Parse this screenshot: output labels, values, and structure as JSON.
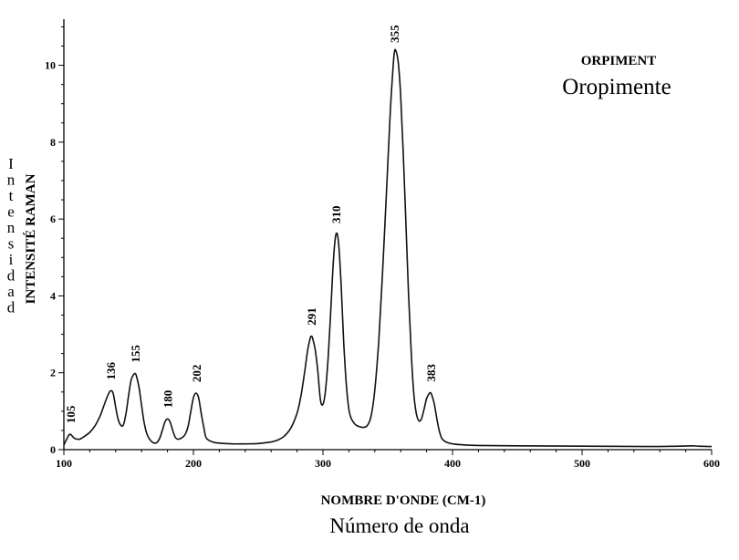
{
  "chart_data": {
    "type": "line",
    "title_en": "ORPIMENT",
    "title_es": "Oropimente",
    "xlabel_en": "NOMBRE D'ONDE (CM-1)",
    "xlabel_es": "Número de onda",
    "ylabel_en": "INTENSITÉ RAMAN",
    "ylabel_es": "Intensidad",
    "xlim": [
      100,
      600
    ],
    "ylim": [
      0,
      11.2
    ],
    "x_ticks": [
      100,
      200,
      300,
      400,
      500,
      600
    ],
    "y_ticks": [
      0,
      2,
      4,
      6,
      8,
      10
    ],
    "grid": false,
    "peak_labels": [
      "105",
      "136",
      "155",
      "180",
      "202",
      "291",
      "310",
      "355",
      "383"
    ],
    "series": [
      {
        "x": [
          100,
          103,
          105,
          108,
          112,
          116,
          120,
          124,
          128,
          131,
          134,
          136,
          138,
          140,
          142,
          144,
          146,
          148,
          150,
          152,
          154,
          155,
          156,
          158,
          160,
          162,
          164,
          166,
          168,
          170,
          172,
          174,
          176,
          178,
          180,
          182,
          184,
          186,
          188,
          190,
          192,
          194,
          196,
          198,
          200,
          202,
          204,
          206,
          208,
          210,
          215,
          220,
          230,
          240,
          250,
          260,
          265,
          270,
          275,
          280,
          283,
          286,
          288,
          290,
          291,
          292,
          294,
          296,
          298,
          300,
          302,
          304,
          306,
          308,
          310,
          312,
          314,
          316,
          318,
          320,
          322,
          325,
          328,
          331,
          334,
          337,
          340,
          343,
          346,
          349,
          352,
          354,
          355,
          356,
          358,
          360,
          362,
          364,
          366,
          368,
          370,
          372,
          374,
          376,
          378,
          380,
          382,
          383,
          384,
          386,
          388,
          390,
          392,
          395,
          400,
          410,
          420,
          450,
          500,
          550,
          575,
          585,
          590,
          600
        ],
        "y": [
          0.12,
          0.33,
          0.4,
          0.3,
          0.27,
          0.35,
          0.45,
          0.62,
          0.88,
          1.15,
          1.42,
          1.53,
          1.47,
          1.1,
          0.78,
          0.63,
          0.65,
          0.95,
          1.42,
          1.82,
          1.96,
          1.98,
          1.92,
          1.62,
          1.15,
          0.7,
          0.42,
          0.28,
          0.2,
          0.17,
          0.19,
          0.3,
          0.5,
          0.72,
          0.8,
          0.72,
          0.5,
          0.32,
          0.27,
          0.29,
          0.33,
          0.42,
          0.62,
          1.0,
          1.35,
          1.47,
          1.35,
          0.95,
          0.58,
          0.3,
          0.2,
          0.17,
          0.15,
          0.15,
          0.16,
          0.2,
          0.25,
          0.35,
          0.55,
          0.95,
          1.4,
          2.05,
          2.55,
          2.88,
          2.95,
          2.9,
          2.6,
          2.05,
          1.3,
          1.18,
          1.55,
          2.4,
          3.6,
          4.9,
          5.6,
          5.4,
          4.3,
          2.8,
          1.7,
          1.05,
          0.8,
          0.65,
          0.6,
          0.58,
          0.62,
          0.85,
          1.55,
          2.8,
          4.6,
          6.7,
          8.8,
          9.9,
          10.3,
          10.4,
          10.1,
          9.2,
          7.7,
          5.9,
          4.1,
          2.6,
          1.5,
          0.95,
          0.75,
          0.8,
          1.05,
          1.33,
          1.46,
          1.48,
          1.42,
          1.18,
          0.78,
          0.46,
          0.28,
          0.2,
          0.15,
          0.12,
          0.11,
          0.1,
          0.09,
          0.08,
          0.09,
          0.1,
          0.09,
          0.08
        ]
      }
    ]
  }
}
